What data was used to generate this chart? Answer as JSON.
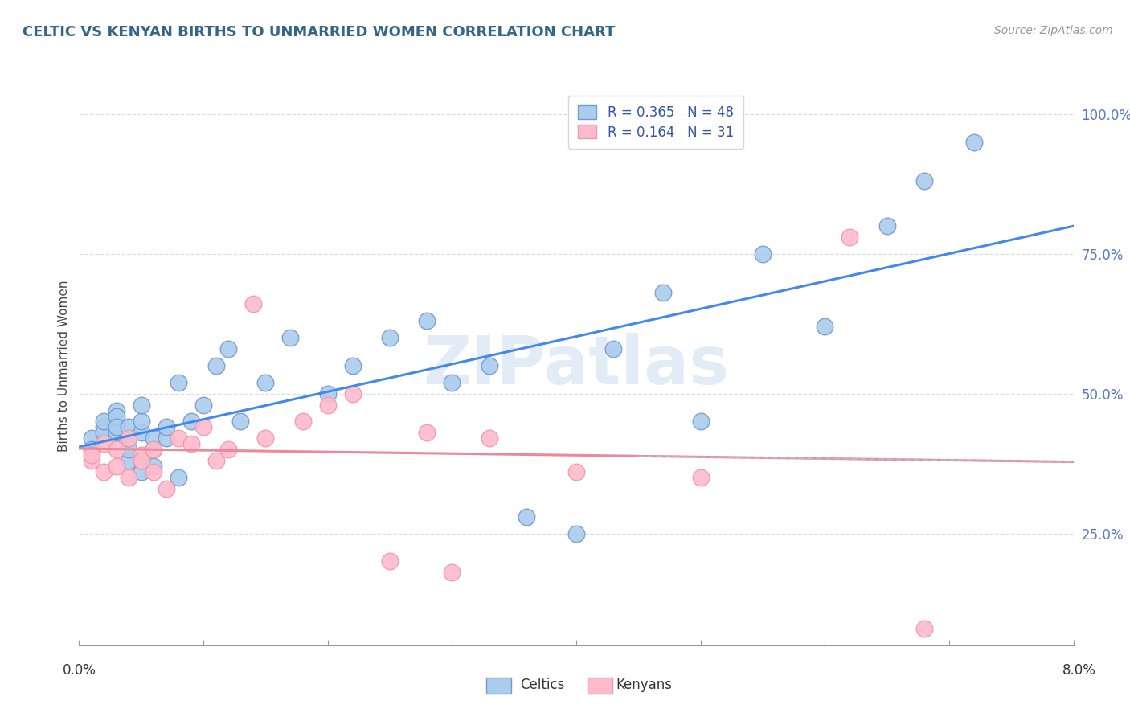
{
  "title": "CELTIC VS KENYAN BIRTHS TO UNMARRIED WOMEN CORRELATION CHART",
  "source": "Source: ZipAtlas.com",
  "ylabel": "Births to Unmarried Women",
  "yticks_labels": [
    "25.0%",
    "50.0%",
    "75.0%",
    "100.0%"
  ],
  "ytick_vals": [
    0.25,
    0.5,
    0.75,
    1.0
  ],
  "xmin": 0.0,
  "xmax": 0.08,
  "ymin": 0.05,
  "ymax": 1.05,
  "blue_face": "#AACCEE",
  "blue_edge": "#7799CC",
  "pink_face": "#FFBBCC",
  "pink_edge": "#EE99AA",
  "blue_line": "#4488EE",
  "pink_line": "#EE8899",
  "dashed_line": "#BBBBBB",
  "grid_color": "#DDDDDD",
  "watermark_color": "#D0E0F0",
  "watermark_text": "ZIPatlas",
  "legend_r1": "R = 0.365",
  "legend_n1": "N = 48",
  "legend_r2": "R = 0.164",
  "legend_n2": "N = 31",
  "celtics_x": [
    0.001,
    0.001,
    0.002,
    0.002,
    0.002,
    0.003,
    0.003,
    0.003,
    0.003,
    0.004,
    0.004,
    0.004,
    0.004,
    0.005,
    0.005,
    0.005,
    0.005,
    0.005,
    0.006,
    0.006,
    0.006,
    0.007,
    0.007,
    0.008,
    0.008,
    0.009,
    0.01,
    0.011,
    0.012,
    0.013,
    0.015,
    0.017,
    0.02,
    0.022,
    0.025,
    0.028,
    0.03,
    0.033,
    0.036,
    0.04,
    0.043,
    0.047,
    0.05,
    0.055,
    0.06,
    0.065,
    0.068,
    0.072
  ],
  "celtics_y": [
    0.42,
    0.4,
    0.44,
    0.43,
    0.45,
    0.43,
    0.47,
    0.46,
    0.44,
    0.38,
    0.4,
    0.42,
    0.44,
    0.36,
    0.38,
    0.43,
    0.45,
    0.48,
    0.37,
    0.4,
    0.42,
    0.42,
    0.44,
    0.35,
    0.52,
    0.45,
    0.48,
    0.55,
    0.58,
    0.45,
    0.52,
    0.6,
    0.5,
    0.55,
    0.6,
    0.63,
    0.52,
    0.55,
    0.28,
    0.25,
    0.58,
    0.68,
    0.45,
    0.75,
    0.62,
    0.8,
    0.88,
    0.95
  ],
  "kenyans_x": [
    0.001,
    0.001,
    0.002,
    0.002,
    0.003,
    0.003,
    0.004,
    0.004,
    0.005,
    0.005,
    0.006,
    0.006,
    0.007,
    0.008,
    0.009,
    0.01,
    0.011,
    0.012,
    0.014,
    0.015,
    0.018,
    0.02,
    0.022,
    0.025,
    0.028,
    0.03,
    0.033,
    0.04,
    0.05,
    0.062,
    0.068
  ],
  "kenyans_y": [
    0.38,
    0.39,
    0.41,
    0.36,
    0.4,
    0.37,
    0.42,
    0.35,
    0.39,
    0.38,
    0.4,
    0.36,
    0.33,
    0.42,
    0.41,
    0.44,
    0.38,
    0.4,
    0.66,
    0.42,
    0.45,
    0.48,
    0.5,
    0.2,
    0.43,
    0.18,
    0.42,
    0.36,
    0.35,
    0.78,
    0.08
  ]
}
